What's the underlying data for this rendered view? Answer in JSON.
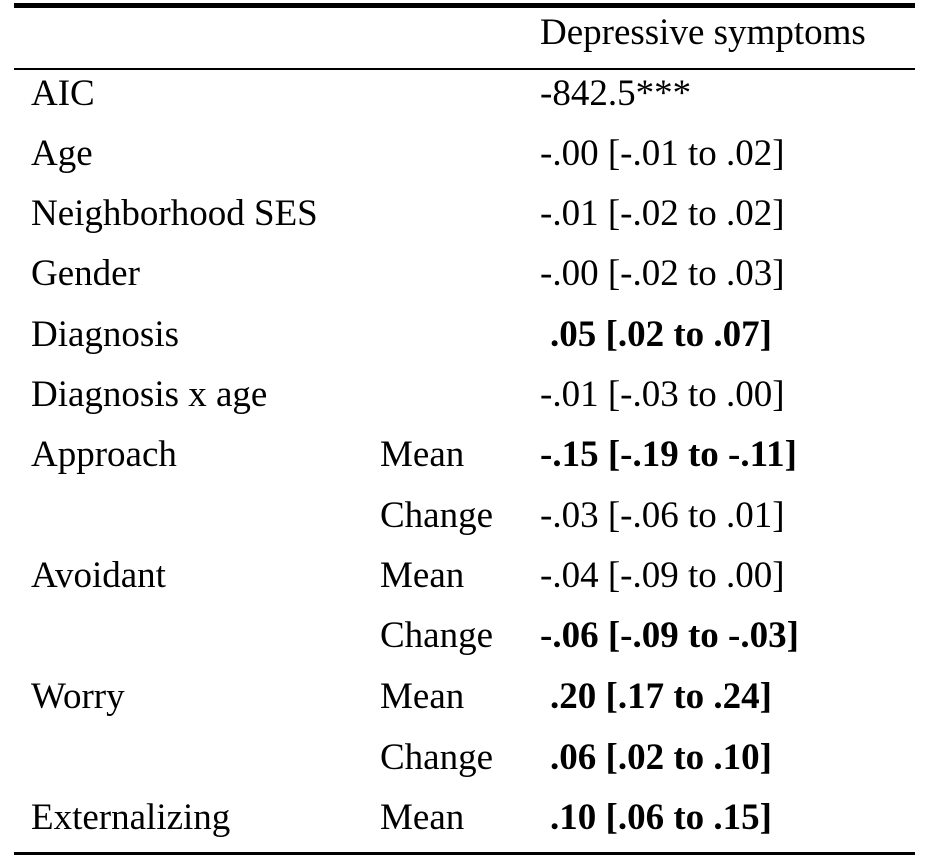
{
  "table": {
    "column_header": "Depressive symptoms",
    "rows": [
      {
        "label": "AIC",
        "sub": "",
        "value": "-842.5***",
        "bold": false
      },
      {
        "label": "Age",
        "sub": "",
        "value": "-.00 [-.01 to .02]",
        "bold": false
      },
      {
        "label": "Neighborhood SES",
        "sub": "",
        "value": "-.01 [-.02 to .02]",
        "bold": false
      },
      {
        "label": "Gender",
        "sub": "",
        "value": "-.00 [-.02 to .03]",
        "bold": false
      },
      {
        "label": "Diagnosis",
        "sub": "",
        "value": ".05 [.02 to .07]",
        "bold": true
      },
      {
        "label": "Diagnosis x age",
        "sub": "",
        "value": "-.01 [-.03 to .00]",
        "bold": false
      },
      {
        "label": "Approach",
        "sub": "Mean",
        "value": "-.15 [-.19 to -.11]",
        "bold": true
      },
      {
        "label": "",
        "sub": "Change",
        "value": "-.03 [-.06 to .01]",
        "bold": false
      },
      {
        "label": "Avoidant",
        "sub": "Mean",
        "value": "-.04 [-.09 to .00]",
        "bold": false
      },
      {
        "label": "",
        "sub": "Change",
        "value": "-.06 [-.09 to -.03]",
        "bold": true
      },
      {
        "label": "Worry",
        "sub": "Mean",
        "value": ".20 [.17 to .24]",
        "bold": true
      },
      {
        "label": "",
        "sub": "Change",
        "value": ".06 [.02 to .10]",
        "bold": true
      },
      {
        "label": "Externalizing",
        "sub": "Mean",
        "value": ".10 [.06 to .15]",
        "bold": true
      }
    ]
  }
}
